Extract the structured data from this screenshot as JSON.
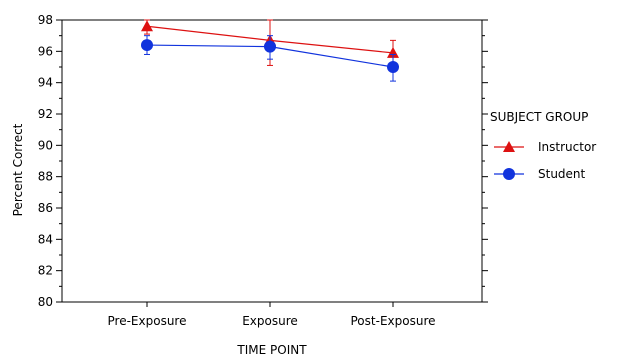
{
  "chart_data": {
    "type": "line",
    "xlabel": "TIME POINT",
    "ylabel": "Percent Correct",
    "categories": [
      "Pre-Exposure",
      "Exposure",
      "Post-Exposure"
    ],
    "ylim": [
      80,
      98
    ],
    "yticks": [
      80,
      82,
      84,
      86,
      88,
      90,
      92,
      94,
      96,
      98
    ],
    "legend": {
      "title": "SUBJECT GROUP",
      "placement": "right"
    },
    "series": [
      {
        "name": "Instructor",
        "marker": "triangle",
        "color": "#dd1111",
        "values": [
          97.6,
          96.7,
          95.9
        ],
        "error_upper": [
          98.0,
          98.0,
          96.7
        ],
        "error_lower": [
          97.1,
          95.1,
          95.2
        ]
      },
      {
        "name": "Student",
        "marker": "circle",
        "color": "#1133dd",
        "values": [
          96.4,
          96.3,
          95.0
        ],
        "error_upper": [
          97.0,
          97.0,
          95.8
        ],
        "error_lower": [
          95.8,
          95.5,
          94.1
        ]
      }
    ]
  }
}
